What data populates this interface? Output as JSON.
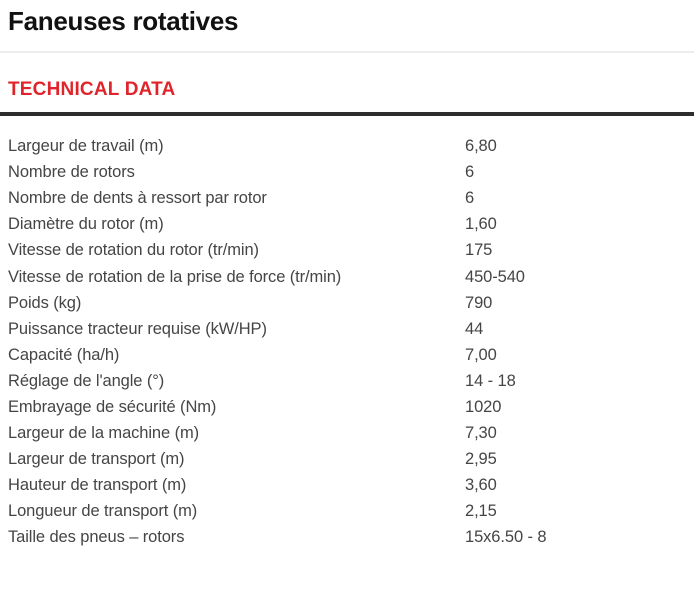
{
  "page": {
    "title": "Faneuses rotatives",
    "section_heading": "TECHNICAL DATA"
  },
  "colors": {
    "accent_red": "#e0242b",
    "title_black": "#111111",
    "text_gray": "#454545",
    "rule_dark": "#2d2d2d",
    "rule_light": "#ededed"
  },
  "specs": {
    "rows": [
      {
        "label": "Largeur de travail (m)",
        "value": "6,80"
      },
      {
        "label": "Nombre de rotors",
        "value": "6"
      },
      {
        "label": "Nombre de dents à ressort par rotor",
        "value": "6"
      },
      {
        "label": "Diamètre du rotor (m)",
        "value": "1,60"
      },
      {
        "label": "Vitesse de rotation du rotor (tr/min)",
        "value": "175"
      },
      {
        "label": "Vitesse de rotation de la prise de force (tr/min)",
        "value": "450-540"
      },
      {
        "label": "Poids (kg)",
        "value": "790"
      },
      {
        "label": "Puissance tracteur requise (kW/HP)",
        "value": "44"
      },
      {
        "label": "Capacité (ha/h)",
        "value": "7,00"
      },
      {
        "label": "Réglage de l'angle (°)",
        "value": "14 - 18"
      },
      {
        "label": "Embrayage de sécurité (Nm)",
        "value": "1020"
      },
      {
        "label": "Largeur de la machine (m)",
        "value": "7,30"
      },
      {
        "label": "Largeur de transport (m)",
        "value": "2,95"
      },
      {
        "label": "Hauteur de transport (m)",
        "value": "3,60"
      },
      {
        "label": "Longueur de transport (m)",
        "value": "2,15"
      },
      {
        "label": "Taille des pneus – rotors",
        "value": "15x6.50 - 8"
      }
    ]
  }
}
